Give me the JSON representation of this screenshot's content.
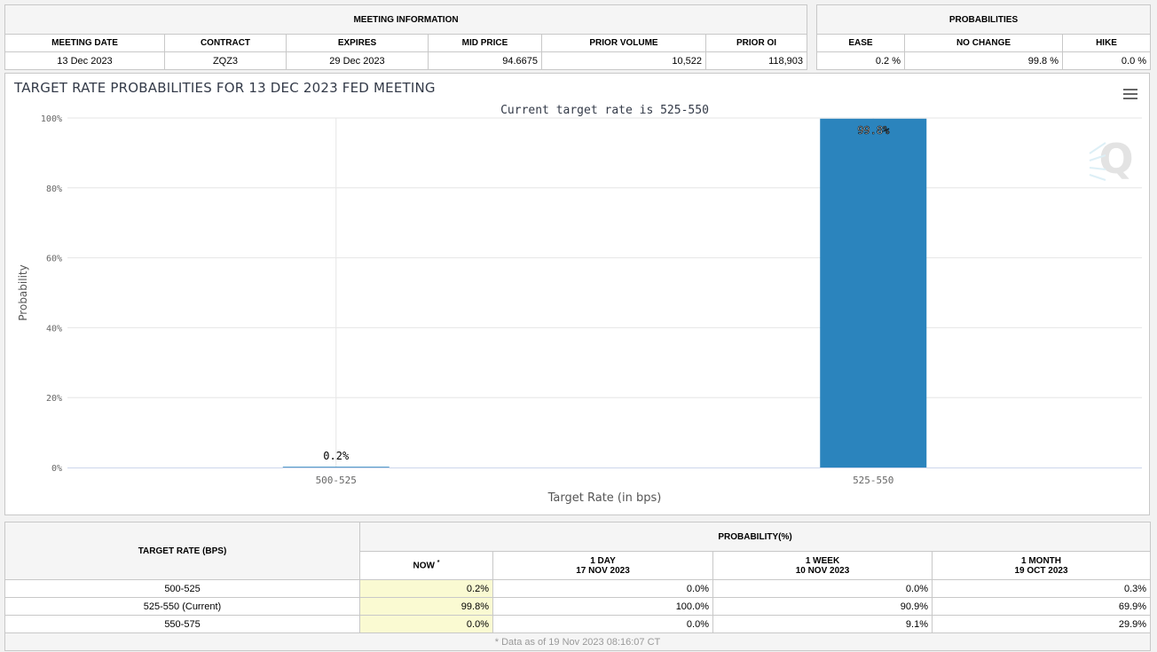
{
  "meeting_info": {
    "header": "MEETING INFORMATION",
    "columns": [
      "MEETING DATE",
      "CONTRACT",
      "EXPIRES",
      "MID PRICE",
      "PRIOR VOLUME",
      "PRIOR OI"
    ],
    "row": [
      "13 Dec 2023",
      "ZQZ3",
      "29 Dec 2023",
      "94.6675",
      "10,522",
      "118,903"
    ]
  },
  "probabilities": {
    "header": "PROBABILITIES",
    "columns": [
      "EASE",
      "NO CHANGE",
      "HIKE"
    ],
    "row": [
      "0.2 %",
      "99.8 %",
      "0.0 %"
    ]
  },
  "chart_data": {
    "type": "bar",
    "title": "TARGET RATE PROBABILITIES FOR 13 DEC 2023 FED MEETING",
    "subtitle": "Current target rate is 525-550",
    "xlabel": "Target Rate (in bps)",
    "ylabel": "Probability",
    "categories": [
      "500-525",
      "525-550"
    ],
    "values": [
      0.2,
      99.8
    ],
    "data_labels": [
      "0.2%",
      "99.8%"
    ],
    "ylim": [
      0,
      100
    ],
    "yticks": [
      "0%",
      "20%",
      "40%",
      "60%",
      "80%",
      "100%"
    ],
    "bar_color": "#2b84bd",
    "grid": true
  },
  "prob_table": {
    "target_rate_header": "TARGET RATE (BPS)",
    "probability_header": "PROBABILITY(%)",
    "now_header": "NOW",
    "now_mark": "*",
    "periods": [
      {
        "label": "1 DAY",
        "date": "17 NOV 2023"
      },
      {
        "label": "1 WEEK",
        "date": "10 NOV 2023"
      },
      {
        "label": "1 MONTH",
        "date": "19 OCT 2023"
      }
    ],
    "rows": [
      {
        "rate": "500-525",
        "now": "0.2%",
        "day": "0.0%",
        "week": "0.0%",
        "month": "0.3%"
      },
      {
        "rate": "525-550 (Current)",
        "now": "99.8%",
        "day": "100.0%",
        "week": "90.9%",
        "month": "69.9%"
      },
      {
        "rate": "550-575",
        "now": "0.0%",
        "day": "0.0%",
        "week": "9.1%",
        "month": "29.9%"
      }
    ],
    "footnote": "* Data as of 19 Nov 2023 08:16:07 CT"
  },
  "icons": {
    "menu": "hamburger-menu-icon",
    "logo": "q-logo-icon"
  }
}
